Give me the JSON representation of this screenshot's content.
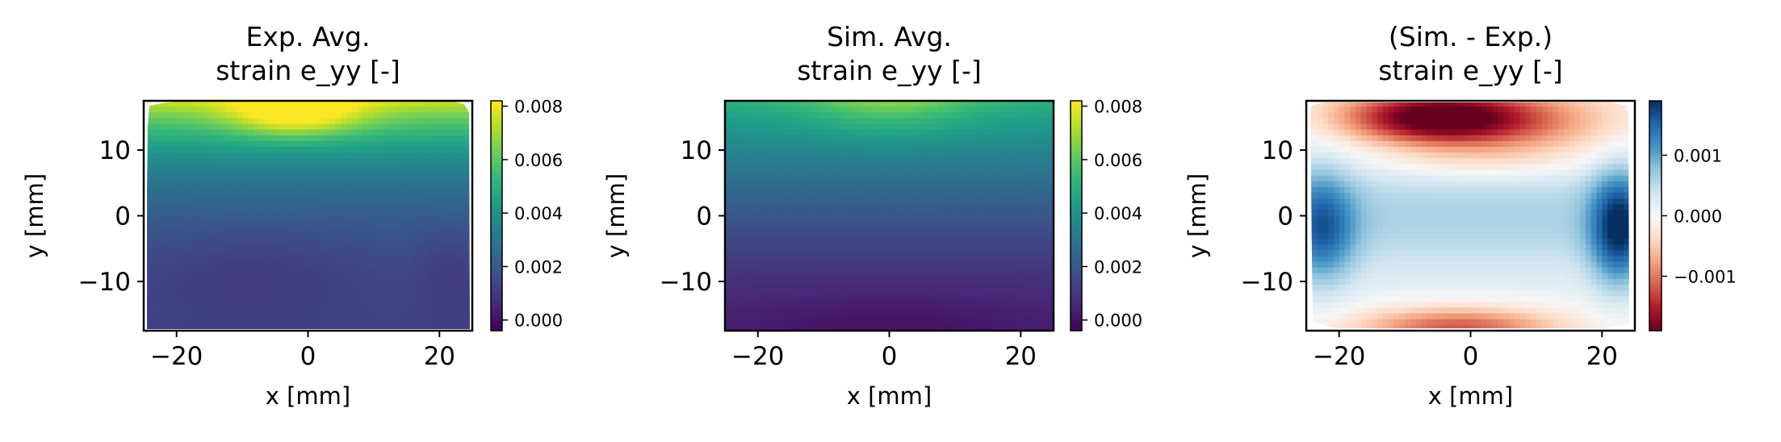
{
  "chart_data": [
    {
      "type": "heatmap",
      "title_lines": [
        "Exp. Avg.",
        "strain e_yy [-]"
      ],
      "xlabel": "x [mm]",
      "ylabel": "y [mm]",
      "xlim": [
        -25,
        25
      ],
      "ylim": [
        -17.5,
        17.5
      ],
      "xticks": [
        -20,
        0,
        20
      ],
      "yticks": [
        -10,
        0,
        10
      ],
      "colormap": "viridis",
      "clim": [
        -0.0004,
        0.0082
      ],
      "colorbar_ticks": [
        0.0,
        0.002,
        0.004,
        0.006,
        0.008
      ],
      "colorbar_tick_labels": [
        "0.000",
        "0.002",
        "0.004",
        "0.006",
        "0.008"
      ]
    },
    {
      "type": "heatmap",
      "title_lines": [
        "Sim. Avg.",
        "strain e_yy [-]"
      ],
      "xlabel": "x [mm]",
      "ylabel": "y [mm]",
      "xlim": [
        -25,
        25
      ],
      "ylim": [
        -17.5,
        17.5
      ],
      "xticks": [
        -20,
        0,
        20
      ],
      "yticks": [
        -10,
        0,
        10
      ],
      "colormap": "viridis",
      "clim": [
        -0.0004,
        0.0082
      ],
      "colorbar_ticks": [
        0.0,
        0.002,
        0.004,
        0.006,
        0.008
      ],
      "colorbar_tick_labels": [
        "0.000",
        "0.002",
        "0.004",
        "0.006",
        "0.008"
      ]
    },
    {
      "type": "heatmap",
      "title_lines": [
        "(Sim. - Exp.)",
        "strain e_yy [-]"
      ],
      "xlabel": "x [mm]",
      "ylabel": "y [mm]",
      "xlim": [
        -25,
        25
      ],
      "ylim": [
        -17.5,
        17.5
      ],
      "xticks": [
        -20,
        0,
        20
      ],
      "yticks": [
        -10,
        0,
        10
      ],
      "colormap": "RdBu",
      "clim": [
        -0.0019,
        0.0019
      ],
      "colorbar_ticks": [
        -0.001,
        0.0,
        0.001
      ],
      "colorbar_tick_labels": [
        "−0.001",
        "0.000",
        "0.001"
      ]
    }
  ]
}
